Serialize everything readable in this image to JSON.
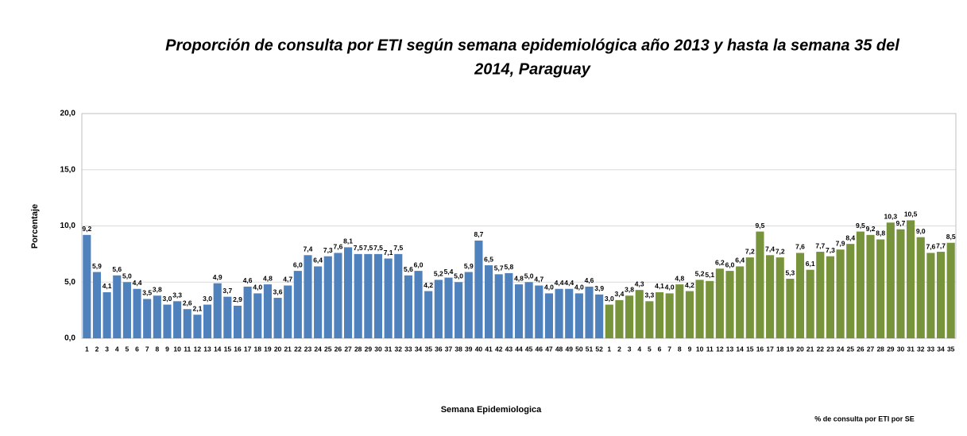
{
  "chart_data": {
    "type": "bar",
    "title": "Proporción de consulta por ETI según semana epidemiológica año 2013 y hasta la semana 35 del",
    "title_line2": "2014, Paraguay",
    "y_label": "Porcentaje",
    "x_label": "Semana Epidemiologica",
    "categories": [
      "1",
      "2",
      "3",
      "4",
      "5",
      "6",
      "7",
      "8",
      "9",
      "10",
      "11",
      "12",
      "13",
      "14",
      "15",
      "16",
      "17",
      "18",
      "19",
      "20",
      "21",
      "22",
      "23",
      "24",
      "25",
      "26",
      "27",
      "28",
      "29",
      "30",
      "31",
      "32",
      "33",
      "34",
      "35",
      "36",
      "37",
      "38",
      "39",
      "40",
      "41",
      "42",
      "43",
      "44",
      "45",
      "46",
      "47",
      "48",
      "49",
      "50",
      "51",
      "52",
      "1",
      "2",
      "3",
      "4",
      "5",
      "6",
      "7",
      "8",
      "9",
      "10",
      "11",
      "12",
      "13",
      "14",
      "15",
      "16",
      "17",
      "18",
      "19",
      "20",
      "21",
      "22",
      "23",
      "24",
      "25",
      "26",
      "27",
      "28",
      "29",
      "30",
      "31",
      "32",
      "33",
      "34",
      "35"
    ],
    "series": [
      {
        "name": "% de consulta por ETI  por  SE",
        "values": [
          9.2,
          5.9,
          4.1,
          5.6,
          5.0,
          4.4,
          3.5,
          3.8,
          3.0,
          3.3,
          2.6,
          2.1,
          3.0,
          4.9,
          3.7,
          2.9,
          4.6,
          4.0,
          4.8,
          3.6,
          4.7,
          6.0,
          7.4,
          6.4,
          7.3,
          7.6,
          8.1,
          7.5,
          7.5,
          7.5,
          7.1,
          7.5,
          5.6,
          6.0,
          4.2,
          5.2,
          5.4,
          5.0,
          5.9,
          8.7,
          6.5,
          5.7,
          5.8,
          4.8,
          5.0,
          4.7,
          4.0,
          4.4,
          4.4,
          4.0,
          4.6,
          3.9,
          3.0,
          3.4,
          3.8,
          4.3,
          3.3,
          4.1,
          4.0,
          4.8,
          4.2,
          5.2,
          5.1,
          6.2,
          6.0,
          6.4,
          7.2,
          9.5,
          7.4,
          7.2,
          5.3,
          7.6,
          6.1,
          7.7,
          7.3,
          7.9,
          8.4,
          9.5,
          9.2,
          8.8,
          10.3,
          9.7,
          10.5,
          9.0,
          7.6,
          7.7,
          8.5
        ],
        "value_labels": [
          "9,2",
          "5,9",
          "4,1",
          "5,6",
          "5,0",
          "4,4",
          "3,5",
          "3,8",
          "3,0",
          "3,3",
          "2,6",
          "2,1",
          "3,0",
          "4,9",
          "3,7",
          "2,9",
          "4,6",
          "4,0",
          "4,8",
          "3,6",
          "4,7",
          "6,0",
          "7,4",
          "6,4",
          "7,3",
          "7,6",
          "8,1",
          "7,5",
          "7,5",
          "7,5",
          "7,1",
          "7,5",
          "5,6",
          "6,0",
          "4,2",
          "5,2",
          "5,4",
          "5,0",
          "5,9",
          "8,7",
          "6,5",
          "5,7",
          "5,8",
          "4,8",
          "5,0",
          "4,7",
          "4,0",
          "4,4",
          "4,4",
          "4,0",
          "4,6",
          "3,9",
          "3,0",
          "3,4",
          "3,8",
          "4,3",
          "3,3",
          "4,1",
          "4,0",
          "4,8",
          "4,2",
          "5,2",
          "5,1",
          "6,2",
          "6,0",
          "6,4",
          "7,2",
          "9,5",
          "7,4",
          "7,2",
          "5,3",
          "7,6",
          "6,1",
          "7,7",
          "7,3",
          "7,9",
          "8,4",
          "9,5",
          "9,2",
          "8,8",
          "10,3",
          "9,7",
          "10,5",
          "9,0",
          "7,6",
          "7,7",
          "8,5"
        ],
        "colors": [
          "#4f81bd",
          "#4f81bd",
          "#4f81bd",
          "#4f81bd",
          "#4f81bd",
          "#4f81bd",
          "#4f81bd",
          "#4f81bd",
          "#4f81bd",
          "#4f81bd",
          "#4f81bd",
          "#4f81bd",
          "#4f81bd",
          "#4f81bd",
          "#4f81bd",
          "#4f81bd",
          "#4f81bd",
          "#4f81bd",
          "#4f81bd",
          "#4f81bd",
          "#4f81bd",
          "#4f81bd",
          "#4f81bd",
          "#4f81bd",
          "#4f81bd",
          "#4f81bd",
          "#4f81bd",
          "#4f81bd",
          "#4f81bd",
          "#4f81bd",
          "#4f81bd",
          "#4f81bd",
          "#4f81bd",
          "#4f81bd",
          "#4f81bd",
          "#4f81bd",
          "#4f81bd",
          "#4f81bd",
          "#4f81bd",
          "#4f81bd",
          "#4f81bd",
          "#4f81bd",
          "#4f81bd",
          "#4f81bd",
          "#4f81bd",
          "#4f81bd",
          "#4f81bd",
          "#4f81bd",
          "#4f81bd",
          "#4f81bd",
          "#4f81bd",
          "#4f81bd",
          "#77933c",
          "#77933c",
          "#77933c",
          "#77933c",
          "#77933c",
          "#77933c",
          "#77933c",
          "#77933c",
          "#77933c",
          "#77933c",
          "#77933c",
          "#77933c",
          "#77933c",
          "#77933c",
          "#77933c",
          "#77933c",
          "#77933c",
          "#77933c",
          "#77933c",
          "#77933c",
          "#77933c",
          "#77933c",
          "#77933c",
          "#77933c",
          "#77933c",
          "#77933c",
          "#77933c",
          "#77933c",
          "#77933c",
          "#77933c",
          "#77933c",
          "#77933c",
          "#77933c",
          "#77933c",
          "#77933c"
        ]
      }
    ],
    "ylim": [
      0,
      20
    ],
    "yticks": [
      {
        "value": 0,
        "label": "0,0"
      },
      {
        "value": 5,
        "label": "5,0"
      },
      {
        "value": 10,
        "label": "10,0"
      },
      {
        "value": 15,
        "label": "15,0"
      },
      {
        "value": 20,
        "label": "20,0"
      }
    ],
    "grid": true
  }
}
